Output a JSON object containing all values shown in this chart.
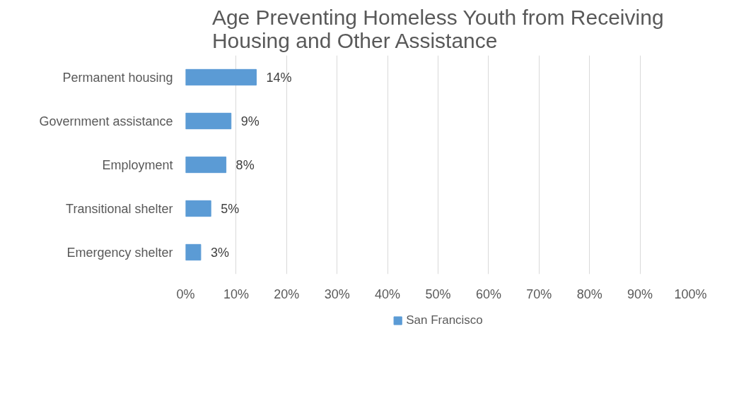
{
  "chart_data": {
    "type": "bar",
    "orientation": "horizontal",
    "title": "Age Preventing Homeless Youth from Receiving Housing and Other Assistance",
    "categories": [
      "Permanent housing",
      "Government assistance",
      "Employment",
      "Transitional shelter",
      "Emergency shelter"
    ],
    "series": [
      {
        "name": "San Francisco",
        "color": "#5b9bd5",
        "values": [
          14,
          9,
          8,
          5,
          3
        ],
        "value_labels": [
          "14%",
          "9%",
          "8%",
          "5%",
          "3%"
        ]
      }
    ],
    "xlim": [
      0,
      100
    ],
    "xticks": [
      {
        "value": 0,
        "label": "0%"
      },
      {
        "value": 10,
        "label": "10%"
      },
      {
        "value": 20,
        "label": "20%"
      },
      {
        "value": 30,
        "label": "30%"
      },
      {
        "value": 40,
        "label": "40%"
      },
      {
        "value": 50,
        "label": "50%"
      },
      {
        "value": 60,
        "label": "60%"
      },
      {
        "value": 70,
        "label": "70%"
      },
      {
        "value": 80,
        "label": "80%"
      },
      {
        "value": 90,
        "label": "90%"
      },
      {
        "value": 100,
        "label": "100%"
      }
    ],
    "grid": "x",
    "legend": "bottom"
  }
}
